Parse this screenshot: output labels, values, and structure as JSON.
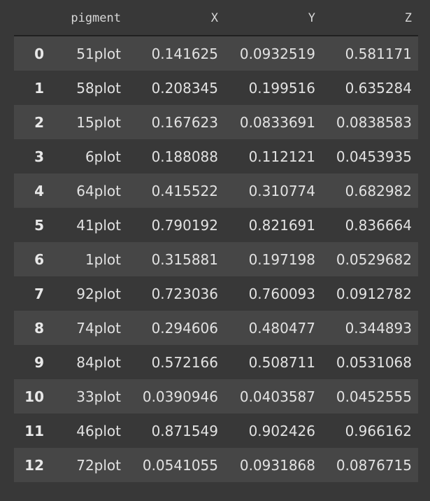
{
  "table": {
    "columns": [
      "",
      "pigment",
      "X",
      "Y",
      "Z"
    ],
    "rows": [
      {
        "index": "0",
        "pigment": "51plot",
        "X": "0.141625",
        "Y": "0.0932519",
        "Z": "0.581171"
      },
      {
        "index": "1",
        "pigment": "58plot",
        "X": "0.208345",
        "Y": "0.199516",
        "Z": "0.635284"
      },
      {
        "index": "2",
        "pigment": "15plot",
        "X": "0.167623",
        "Y": "0.0833691",
        "Z": "0.0838583"
      },
      {
        "index": "3",
        "pigment": "6plot",
        "X": "0.188088",
        "Y": "0.112121",
        "Z": "0.0453935"
      },
      {
        "index": "4",
        "pigment": "64plot",
        "X": "0.415522",
        "Y": "0.310774",
        "Z": "0.682982"
      },
      {
        "index": "5",
        "pigment": "41plot",
        "X": "0.790192",
        "Y": "0.821691",
        "Z": "0.836664"
      },
      {
        "index": "6",
        "pigment": "1plot",
        "X": "0.315881",
        "Y": "0.197198",
        "Z": "0.0529682"
      },
      {
        "index": "7",
        "pigment": "92plot",
        "X": "0.723036",
        "Y": "0.760093",
        "Z": "0.0912782"
      },
      {
        "index": "8",
        "pigment": "74plot",
        "X": "0.294606",
        "Y": "0.480477",
        "Z": "0.344893"
      },
      {
        "index": "9",
        "pigment": "84plot",
        "X": "0.572166",
        "Y": "0.508711",
        "Z": "0.0531068"
      },
      {
        "index": "10",
        "pigment": "33plot",
        "X": "0.0390946",
        "Y": "0.0403587",
        "Z": "0.0452555"
      },
      {
        "index": "11",
        "pigment": "46plot",
        "X": "0.871549",
        "Y": "0.902426",
        "Z": "0.966162"
      },
      {
        "index": "12",
        "pigment": "72plot",
        "X": "0.0541055",
        "Y": "0.0931868",
        "Z": "0.0876715"
      }
    ]
  },
  "colors": {
    "background": "#383838",
    "row_stripe": "#464646",
    "text": "#e2e2e2"
  }
}
